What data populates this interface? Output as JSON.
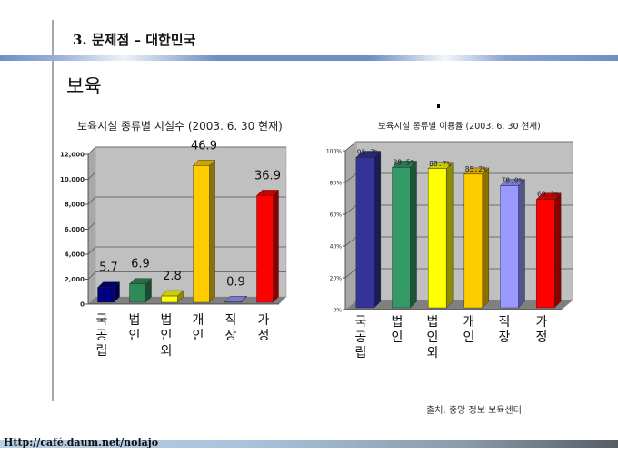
{
  "header": {
    "title": "3. 문제점 – 대한민국",
    "subtitle": "보육"
  },
  "source": "출처: 중앙 정보 보육센터",
  "footer": "Http://café.daum.net/nolajo",
  "chart_data": [
    {
      "type": "bar",
      "title": "보육시설 종류별 시설수 (2003. 6. 30 현재)",
      "categories": [
        "국공립",
        "법인",
        "법인외",
        "개인",
        "직장",
        "가정"
      ],
      "values": [
        1330,
        1620,
        650,
        11100,
        200,
        8700
      ],
      "data_labels": [
        "5.7",
        "6.9",
        "2.8",
        "46.9",
        "0.9",
        "36.9"
      ],
      "colors": [
        "#000080",
        "#2e8b57",
        "#ffff00",
        "#ffcc00",
        "#9999ff",
        "#ff0000"
      ],
      "yticks": [
        "0",
        "2,000",
        "4,000",
        "6,000",
        "8,000",
        "10,000",
        "12,000"
      ],
      "ylim": [
        0,
        12000
      ],
      "grid": true
    },
    {
      "type": "bar",
      "title": "보육시설 종류별 이용율 (2003. 6. 30 현재)",
      "categories": [
        "국공립",
        "법인",
        "법인외",
        "개인",
        "직장",
        "가정"
      ],
      "values": [
        95.7,
        89.5,
        88.7,
        85.2,
        78.0,
        69.3
      ],
      "data_labels": [
        "95.7%",
        "89.5%",
        "88.7%",
        "85.2%",
        "78.0%",
        "69.3%"
      ],
      "colors": [
        "#333399",
        "#339966",
        "#ffff00",
        "#ffcc00",
        "#9999ff",
        "#ff0000"
      ],
      "yticks": [
        "0%",
        "20%",
        "40%",
        "60%",
        "80%",
        "100%"
      ],
      "ylim": [
        0,
        100
      ],
      "grid": true
    }
  ]
}
